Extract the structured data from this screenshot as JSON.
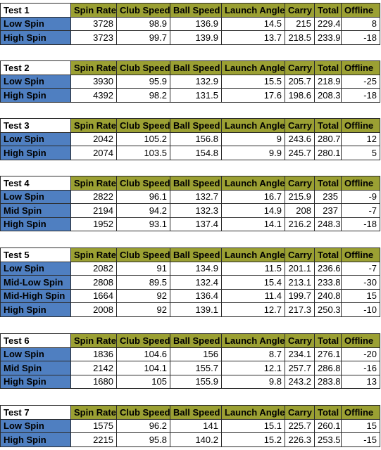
{
  "columns": [
    "Spin Rate",
    "Club Speed",
    "Ball Speed",
    "Launch Angle",
    "Carry",
    "Total",
    "Offline"
  ],
  "tests": [
    {
      "title": "Test 1",
      "rows": [
        {
          "label": "Low Spin",
          "values": [
            "3728",
            "98.9",
            "136.9",
            "14.5",
            "215",
            "229.4",
            "8"
          ]
        },
        {
          "label": "High Spin",
          "values": [
            "3723",
            "99.7",
            "139.9",
            "13.7",
            "218.5",
            "233.9",
            "-18"
          ]
        }
      ]
    },
    {
      "title": "Test 2",
      "rows": [
        {
          "label": "Low Spin",
          "values": [
            "3930",
            "95.9",
            "132.9",
            "15.5",
            "205.7",
            "218.9",
            "-25"
          ]
        },
        {
          "label": "High Spin",
          "values": [
            "4392",
            "98.2",
            "131.5",
            "17.6",
            "198.6",
            "208.3",
            "-18"
          ]
        }
      ]
    },
    {
      "title": "Test 3",
      "rows": [
        {
          "label": "Low Spin",
          "values": [
            "2042",
            "105.2",
            "156.8",
            "9",
            "243.6",
            "280.7",
            "12"
          ]
        },
        {
          "label": "High Spin",
          "values": [
            "2074",
            "103.5",
            "154.8",
            "9.9",
            "245.7",
            "280.1",
            "5"
          ]
        }
      ]
    },
    {
      "title": "Test 4",
      "rows": [
        {
          "label": "Low Spin",
          "values": [
            "2822",
            "96.1",
            "132.7",
            "16.7",
            "215.9",
            "235",
            "-9"
          ]
        },
        {
          "label": "Mid Spin",
          "values": [
            "2194",
            "94.2",
            "132.3",
            "14.9",
            "208",
            "237",
            "-7"
          ]
        },
        {
          "label": "High Spin",
          "values": [
            "1952",
            "93.1",
            "137.4",
            "14.1",
            "216.2",
            "248.3",
            "-18"
          ]
        }
      ]
    },
    {
      "title": "Test 5",
      "rows": [
        {
          "label": "Low Spin",
          "values": [
            "2082",
            "91",
            "134.9",
            "11.5",
            "201.1",
            "236.6",
            "-7"
          ]
        },
        {
          "label": "Mid-Low Spin",
          "values": [
            "2808",
            "89.5",
            "132.4",
            "15.4",
            "213.1",
            "233.8",
            "-30"
          ]
        },
        {
          "label": "Mid-High Spin",
          "values": [
            "1664",
            "92",
            "136.4",
            "11.4",
            "199.7",
            "240.8",
            "15"
          ]
        },
        {
          "label": "High Spin",
          "values": [
            "2008",
            "92",
            "139.1",
            "12.7",
            "217.3",
            "250.3",
            "-10"
          ]
        }
      ]
    },
    {
      "title": "Test 6",
      "rows": [
        {
          "label": "Low Spin",
          "values": [
            "1836",
            "104.6",
            "156",
            "8.7",
            "234.1",
            "276.1",
            "-20"
          ]
        },
        {
          "label": "Mid Spin",
          "values": [
            "2142",
            "104.1",
            "155.7",
            "12.1",
            "257.7",
            "286.8",
            "-16"
          ]
        },
        {
          "label": "High Spin",
          "values": [
            "1680",
            "105",
            "155.9",
            "9.8",
            "243.2",
            "283.8",
            "13"
          ]
        }
      ]
    },
    {
      "title": "Test 7",
      "rows": [
        {
          "label": "Low Spin",
          "values": [
            "1575",
            "96.2",
            "141",
            "15.1",
            "225.7",
            "260.1",
            "15"
          ]
        },
        {
          "label": "High Spin",
          "values": [
            "2215",
            "95.8",
            "140.2",
            "15.2",
            "226.3",
            "253.5",
            "-15"
          ]
        }
      ]
    }
  ]
}
